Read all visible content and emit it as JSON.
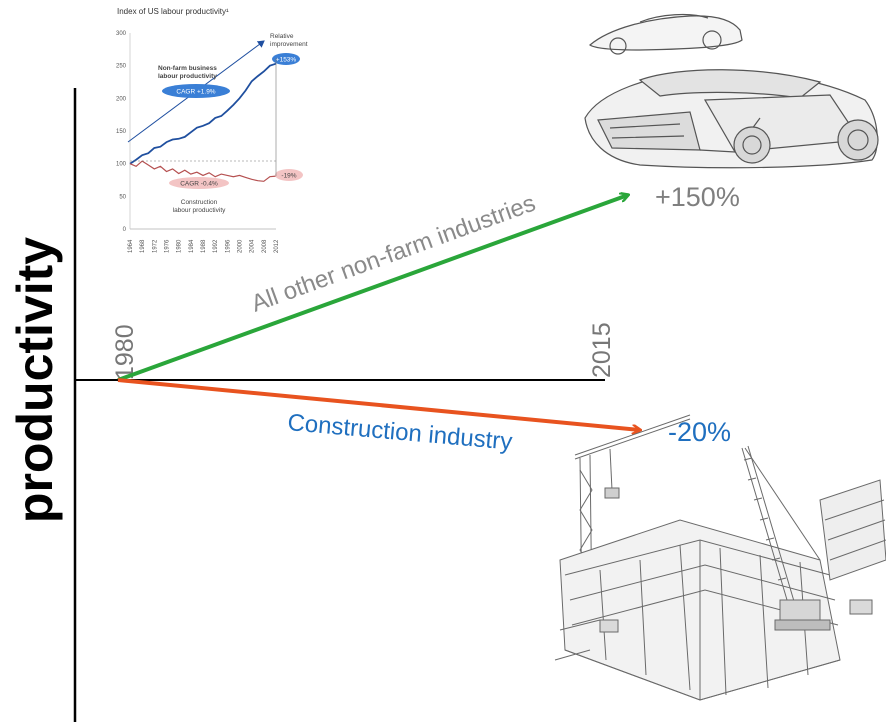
{
  "main": {
    "ylabel": "productivity",
    "year_start": "1980",
    "year_end": "2015",
    "upper_label": "All other non-farm industries",
    "upper_change": "+150%",
    "lower_label": "Construction industry",
    "lower_change": "-20%",
    "colors": {
      "upper_arrow": "#2aa63a",
      "lower_arrow": "#e8531f",
      "lower_text": "#1f6fbf",
      "upper_text": "#8a8a8a"
    }
  },
  "inset": {
    "title": "Index of US labour productivity¹",
    "relative_label_1": "Relative",
    "relative_label_2": "improvement",
    "nonfarm_label_1": "Non-farm business",
    "nonfarm_label_2": "labour productivity",
    "nonfarm_cagr": "CAGR +1.9%",
    "nonfarm_change": "+153%",
    "construction_cagr": "CAGR -0.4%",
    "construction_change": "-19%",
    "construction_label_1": "Construction",
    "construction_label_2": "labour productivity"
  },
  "chart_data": {
    "type": "line",
    "title": "Index of US labour productivity¹",
    "x": [
      1964,
      1966,
      1968,
      1970,
      1972,
      1974,
      1976,
      1978,
      1980,
      1982,
      1984,
      1986,
      1988,
      1990,
      1992,
      1994,
      1996,
      1998,
      2000,
      2002,
      2004,
      2006,
      2008,
      2010,
      2012
    ],
    "x_tick_labels": [
      "1964",
      "1968",
      "1972",
      "1976",
      "1980",
      "1984",
      "1988",
      "1992",
      "1996",
      "2000",
      "2004",
      "2008",
      "2012"
    ],
    "y_ticks": [
      0,
      50,
      100,
      150,
      200,
      250,
      300
    ],
    "ylim": [
      0,
      300
    ],
    "series": [
      {
        "name": "Non-farm business labour productivity",
        "values": [
          100,
          106,
          113,
          116,
          124,
          126,
          133,
          137,
          138,
          141,
          148,
          155,
          158,
          162,
          170,
          173,
          181,
          190,
          200,
          212,
          226,
          234,
          241,
          250,
          253
        ]
      },
      {
        "name": "Construction labour productivity",
        "values": [
          100,
          96,
          104,
          98,
          92,
          96,
          88,
          92,
          85,
          90,
          84,
          87,
          82,
          86,
          80,
          84,
          82,
          80,
          82,
          79,
          76,
          74,
          73,
          80,
          81
        ]
      }
    ],
    "annotations": [
      "CAGR +1.9%",
      "+153%",
      "CAGR -0.4%",
      "-19%",
      "Relative improvement"
    ]
  }
}
